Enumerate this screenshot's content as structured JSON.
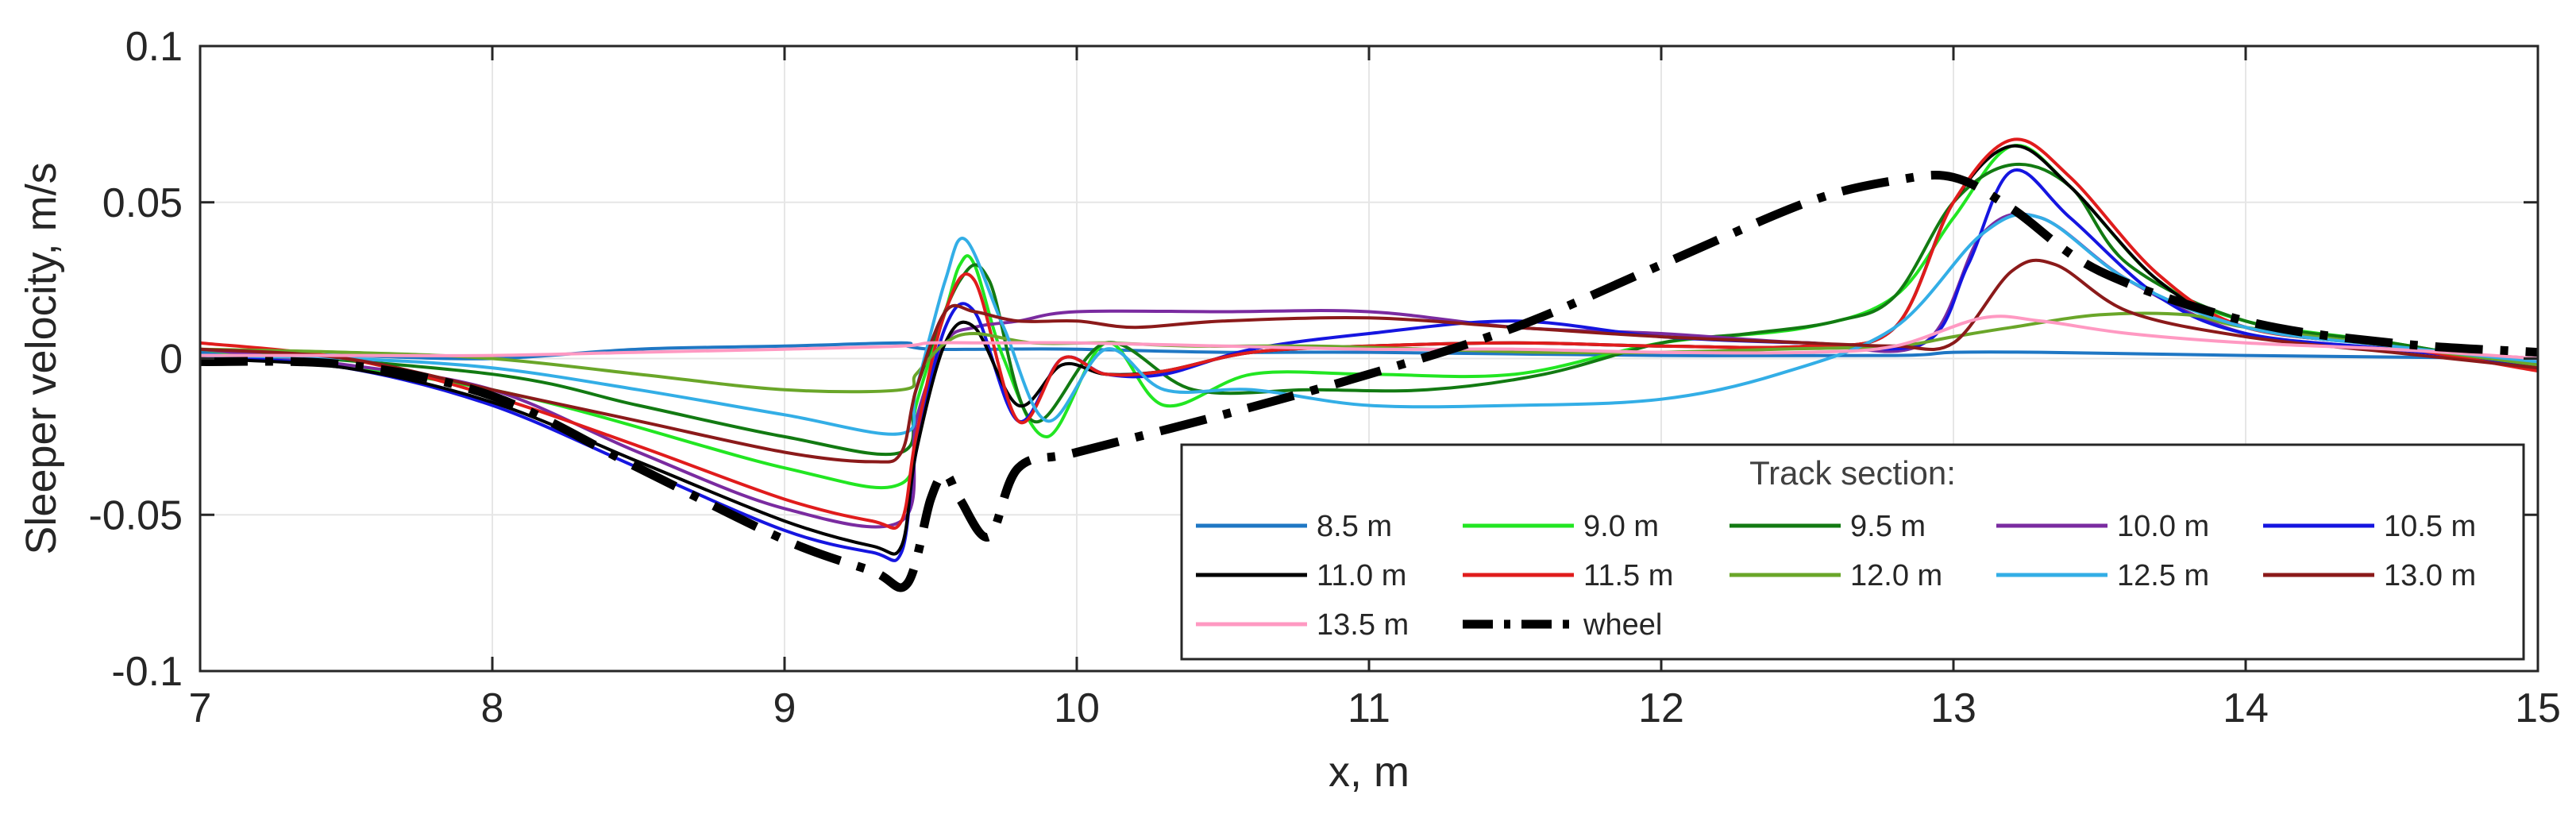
{
  "chart_data": {
    "type": "line",
    "title": "",
    "xlabel": "x, m",
    "ylabel": "Sleeper velocity, m/s",
    "xlim": [
      7,
      15
    ],
    "ylim": [
      -0.1,
      0.1
    ],
    "xticks": [
      7,
      8,
      9,
      10,
      11,
      12,
      13,
      14,
      15
    ],
    "xtick_labels": [
      "7",
      "8",
      "9",
      "10",
      "11",
      "12",
      "13",
      "14",
      "15"
    ],
    "yticks": [
      -0.1,
      -0.05,
      0,
      0.05,
      0.1
    ],
    "ytick_labels": [
      "-0.1",
      "-0.05",
      "0",
      "0.05",
      "0.1"
    ],
    "grid": true,
    "legend": {
      "title": "Track section:",
      "placement": "bottom-right",
      "columns": 5
    },
    "series": [
      {
        "name": "8.5 m",
        "color": "#1f77c4",
        "dash": "solid",
        "x": [
          7,
          7.5,
          8,
          8.5,
          9,
          9.4,
          9.42,
          9.5,
          9.7,
          10,
          10.5,
          11,
          12,
          12.8,
          13,
          13.3,
          14,
          15
        ],
        "y": [
          0.002,
          0.001,
          0,
          0.003,
          0.004,
          0.005,
          0.004,
          0.003,
          0.003,
          0.003,
          0.002,
          0.002,
          0.001,
          0.001,
          0.002,
          0.002,
          0.001,
          0
        ]
      },
      {
        "name": "9.0 m",
        "color": "#22e622",
        "dash": "solid",
        "x": [
          7,
          8,
          9,
          9.4,
          9.45,
          9.55,
          9.6,
          9.65,
          9.75,
          9.9,
          10.1,
          10.3,
          10.6,
          11,
          11.5,
          12,
          12.5,
          12.8,
          13,
          13.2,
          13.4,
          13.7,
          14,
          14.5,
          15
        ],
        "y": [
          0.003,
          -0.01,
          -0.035,
          -0.04,
          -0.015,
          0.015,
          0.03,
          0.03,
          0,
          -0.025,
          0.005,
          -0.015,
          -0.005,
          -0.005,
          -0.005,
          0.005,
          0.01,
          0.02,
          0.045,
          0.068,
          0.055,
          0.025,
          0.012,
          0.005,
          -0.003
        ]
      },
      {
        "name": "9.5 m",
        "color": "#127a12",
        "dash": "solid",
        "x": [
          7,
          8,
          8.5,
          9,
          9.4,
          9.45,
          9.6,
          9.7,
          9.85,
          10.1,
          10.4,
          10.8,
          11.2,
          11.6,
          12,
          12.3,
          12.6,
          12.8,
          13,
          13.2,
          13.4,
          13.6,
          14,
          14.5,
          15
        ],
        "y": [
          0.003,
          -0.005,
          -0.015,
          -0.025,
          -0.03,
          -0.01,
          0.025,
          0.025,
          -0.02,
          0.005,
          -0.01,
          -0.01,
          -0.01,
          -0.005,
          0.005,
          0.008,
          0.012,
          0.02,
          0.05,
          0.062,
          0.055,
          0.03,
          0.012,
          0.005,
          -0.003
        ]
      },
      {
        "name": "10.0 m",
        "color": "#7a2ba0",
        "dash": "solid",
        "x": [
          7,
          7.5,
          8,
          8.5,
          9,
          9.4,
          9.45,
          9.55,
          9.65,
          9.8,
          10,
          10.5,
          11,
          11.5,
          12,
          12.5,
          12.9,
          13.1,
          13.3,
          13.6,
          14,
          14.5,
          15
        ],
        "y": [
          0.003,
          -0.002,
          -0.01,
          -0.03,
          -0.048,
          -0.052,
          -0.02,
          0.005,
          0.01,
          0.012,
          0.015,
          0.015,
          0.015,
          0.01,
          0.008,
          0.005,
          0.005,
          0.04,
          0.045,
          0.025,
          0.008,
          0.003,
          0
        ]
      },
      {
        "name": "10.5 m",
        "color": "#1515e0",
        "dash": "solid",
        "x": [
          7,
          7.5,
          8,
          8.5,
          9,
          9.3,
          9.4,
          9.45,
          9.55,
          9.65,
          9.8,
          9.95,
          10.1,
          10.3,
          10.6,
          11,
          11.5,
          12,
          12.5,
          12.9,
          13.05,
          13.2,
          13.4,
          13.7,
          14,
          14.5,
          15
        ],
        "y": [
          0.001,
          -0.003,
          -0.015,
          -0.035,
          -0.055,
          -0.062,
          -0.062,
          -0.03,
          0.01,
          0.015,
          -0.02,
          0,
          -0.005,
          -0.005,
          0.003,
          0.008,
          0.012,
          0.007,
          0.005,
          0.005,
          0.03,
          0.06,
          0.045,
          0.02,
          0.008,
          0.003,
          -0.002
        ]
      },
      {
        "name": "11.0 m",
        "color": "#000000",
        "dash": "solid",
        "x": [
          7,
          7.5,
          8,
          8.5,
          9,
          9.3,
          9.4,
          9.45,
          9.55,
          9.65,
          9.8,
          9.95,
          10.1,
          10.3,
          10.6,
          11,
          11.5,
          12,
          12.5,
          12.8,
          13,
          13.2,
          13.4,
          13.7,
          14,
          14.5,
          15
        ],
        "y": [
          0,
          -0.003,
          -0.014,
          -0.033,
          -0.052,
          -0.06,
          -0.06,
          -0.03,
          0.005,
          0.01,
          -0.015,
          -0.002,
          -0.005,
          -0.004,
          0.002,
          0.004,
          0.005,
          0.004,
          0.004,
          0.01,
          0.05,
          0.068,
          0.055,
          0.025,
          0.01,
          0.004,
          -0.002
        ]
      },
      {
        "name": "11.5 m",
        "color": "#e01c1c",
        "dash": "solid",
        "x": [
          7,
          7.5,
          8,
          8.5,
          9,
          9.3,
          9.4,
          9.45,
          9.55,
          9.65,
          9.8,
          9.95,
          10.1,
          10.3,
          10.6,
          11,
          11.5,
          12,
          12.5,
          12.8,
          13,
          13.2,
          13.4,
          13.7,
          14,
          14.5,
          15
        ],
        "y": [
          0.005,
          0,
          -0.012,
          -0.028,
          -0.045,
          -0.052,
          -0.052,
          -0.025,
          0.015,
          0.025,
          -0.02,
          0,
          -0.005,
          -0.004,
          0.002,
          0.004,
          0.005,
          0.004,
          0.004,
          0.01,
          0.05,
          0.07,
          0.058,
          0.027,
          0.01,
          0.004,
          -0.004
        ]
      },
      {
        "name": "12.0 m",
        "color": "#6aa629",
        "dash": "solid",
        "x": [
          7,
          7.5,
          8,
          8.5,
          9,
          9.4,
          9.45,
          9.55,
          9.65,
          9.85,
          10.1,
          10.4,
          10.8,
          11.2,
          11.6,
          12,
          12.4,
          12.8,
          13,
          13.2,
          13.5,
          13.8,
          14,
          14.5,
          15
        ],
        "y": [
          0.003,
          0.002,
          0,
          -0.005,
          -0.01,
          -0.01,
          -0.005,
          0.005,
          0.008,
          0.005,
          0.005,
          0.004,
          0.004,
          0.003,
          0.002,
          0.002,
          0.003,
          0.004,
          0.007,
          0.01,
          0.014,
          0.014,
          0.01,
          0.004,
          -0.002
        ]
      },
      {
        "name": "12.5 m",
        "color": "#33aee6",
        "dash": "solid",
        "x": [
          7,
          7.5,
          8,
          8.5,
          9,
          9.4,
          9.45,
          9.55,
          9.62,
          9.75,
          9.9,
          10.1,
          10.3,
          10.6,
          11,
          11.5,
          12,
          12.4,
          12.8,
          13.1,
          13.3,
          13.6,
          14,
          14.5,
          15
        ],
        "y": [
          0.001,
          0,
          -0.003,
          -0.01,
          -0.018,
          -0.024,
          -0.01,
          0.025,
          0.038,
          0.01,
          -0.02,
          0.003,
          -0.01,
          -0.01,
          -0.015,
          -0.015,
          -0.013,
          -0.005,
          0.01,
          0.04,
          0.045,
          0.025,
          0.01,
          0.004,
          -0.001
        ]
      },
      {
        "name": "13.0 m",
        "color": "#8b1a1a",
        "dash": "solid",
        "x": [
          7,
          7.5,
          8,
          8.5,
          9,
          9.3,
          9.4,
          9.45,
          9.55,
          9.65,
          9.8,
          10,
          10.2,
          10.5,
          11,
          11.5,
          12,
          12.5,
          12.8,
          13,
          13.2,
          13.35,
          13.6,
          14,
          14.5,
          15
        ],
        "y": [
          0.003,
          0,
          -0.01,
          -0.02,
          -0.03,
          -0.033,
          -0.03,
          -0.01,
          0.015,
          0.015,
          0.012,
          0.012,
          0.01,
          0.012,
          0.013,
          0.01,
          0.007,
          0.005,
          0.004,
          0.005,
          0.028,
          0.03,
          0.015,
          0.007,
          0.002,
          -0.003
        ]
      },
      {
        "name": "13.5 m",
        "color": "#ff99c2",
        "dash": "solid",
        "x": [
          7,
          7.5,
          8,
          8.5,
          9,
          9.4,
          9.5,
          9.7,
          10,
          10.5,
          11,
          11.5,
          12,
          12.5,
          12.8,
          13.1,
          13.3,
          13.6,
          14,
          14.5,
          15
        ],
        "y": [
          0.001,
          0.001,
          0.001,
          0.002,
          0.003,
          0.004,
          0.005,
          0.005,
          0.005,
          0.004,
          0.003,
          0.003,
          0.002,
          0.002,
          0.004,
          0.013,
          0.012,
          0.008,
          0.005,
          0.003,
          0
        ]
      },
      {
        "name": "wheel",
        "color": "#000000",
        "dash": "dashdot",
        "x": [
          7,
          7.5,
          8,
          8.5,
          9,
          9.3,
          9.42,
          9.5,
          9.55,
          9.6,
          9.7,
          9.8,
          10,
          10.5,
          11,
          11.5,
          12,
          12.5,
          12.8,
          13,
          13.2,
          13.5,
          14,
          14.5,
          15
        ],
        "y": [
          -0.001,
          -0.002,
          -0.012,
          -0.035,
          -0.058,
          -0.068,
          -0.072,
          -0.045,
          -0.037,
          -0.045,
          -0.057,
          -0.035,
          -0.03,
          -0.018,
          -0.005,
          0.01,
          0.03,
          0.05,
          0.057,
          0.058,
          0.048,
          0.028,
          0.012,
          0.005,
          0.002
        ]
      }
    ]
  }
}
